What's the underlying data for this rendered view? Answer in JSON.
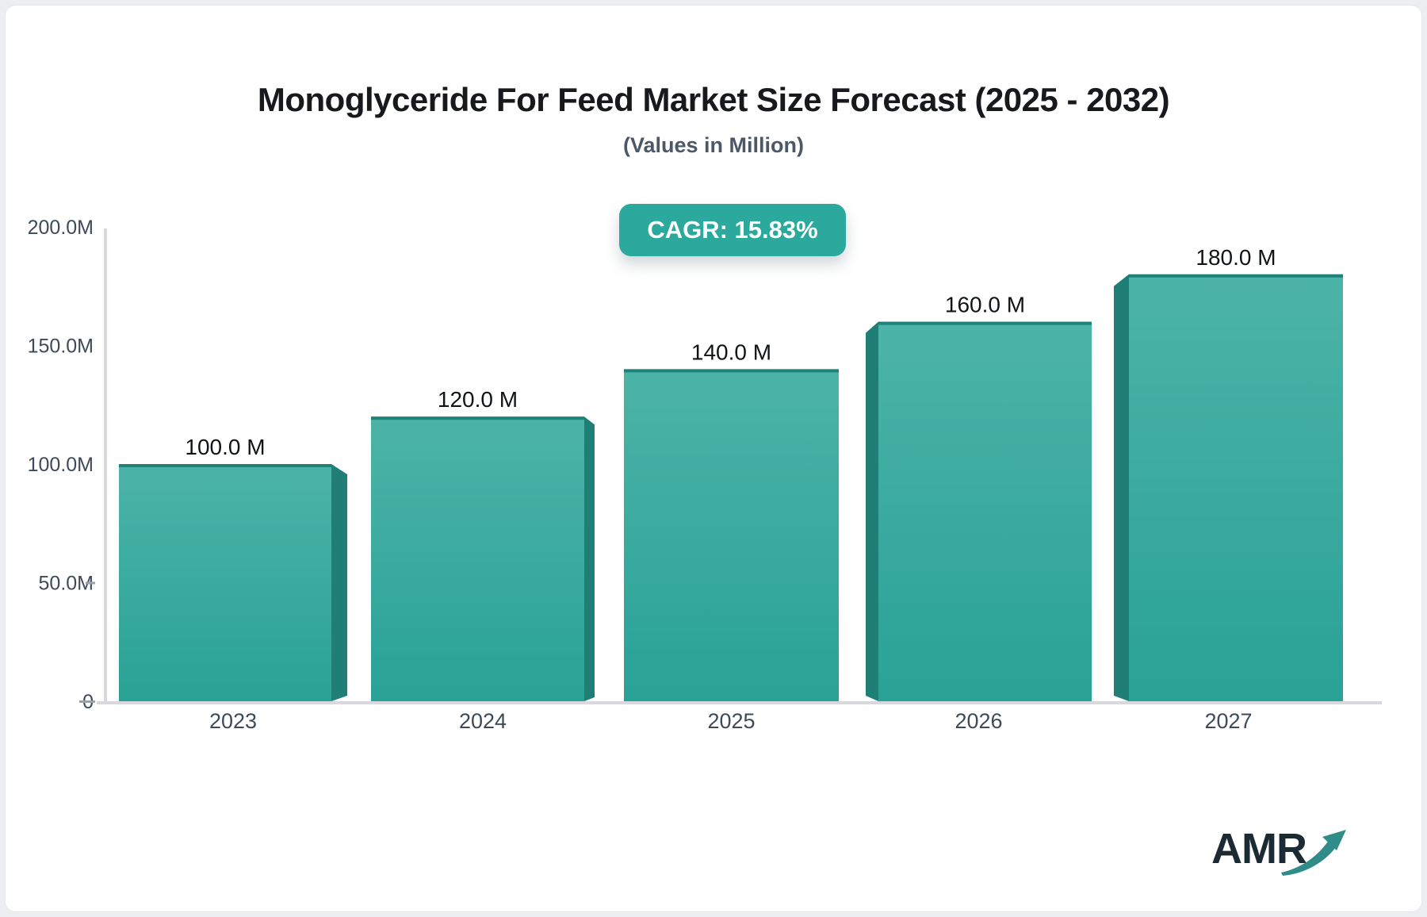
{
  "page": {
    "title": "Monoglyceride For Feed Market Size Forecast (2025 - 2032)",
    "subtitle": "(Values in Million)",
    "cagr_badge": "CAGR: 15.83%",
    "logo": {
      "text": "AMR",
      "arrow_icon": "growth-arrow-icon"
    }
  },
  "colors": {
    "badge_bg": "#2aa99c",
    "bar_face_top": "#4db3a8",
    "bar_face_bottom": "#29a296",
    "bar_side_panel": "#1f7e76",
    "bar_top_edge": "#1d837a",
    "axis_line": "#d8d9de",
    "tick_mark": "#9aa1ab",
    "axis_text": "#3e4a58",
    "value_text": "#111417",
    "logo_text_color": "#1c2a33",
    "logo_arrow_color": "#2f8c89"
  },
  "chart_data": {
    "type": "bar",
    "style": "3d-column",
    "title": "Monoglyceride For Feed Market Size Forecast (2025 - 2032)",
    "subtitle": "(Values in Million)",
    "cagr": "15.83%",
    "unit": "Million",
    "categories": [
      "2023",
      "2024",
      "2025",
      "2026",
      "2027"
    ],
    "values": [
      100,
      120,
      140,
      160,
      180
    ],
    "value_labels": [
      "100.0 M",
      "120.0 M",
      "140.0 M",
      "160.0 M",
      "180.0 M"
    ],
    "y_ticks": [
      200,
      150,
      100,
      50,
      0
    ],
    "y_tick_labels": [
      "200.0M",
      "150.0M",
      "100.0M",
      "50.0M",
      "0"
    ],
    "ylim": [
      0,
      200
    ],
    "xlabel": "",
    "ylabel": "",
    "grid": false,
    "legend": "none"
  }
}
